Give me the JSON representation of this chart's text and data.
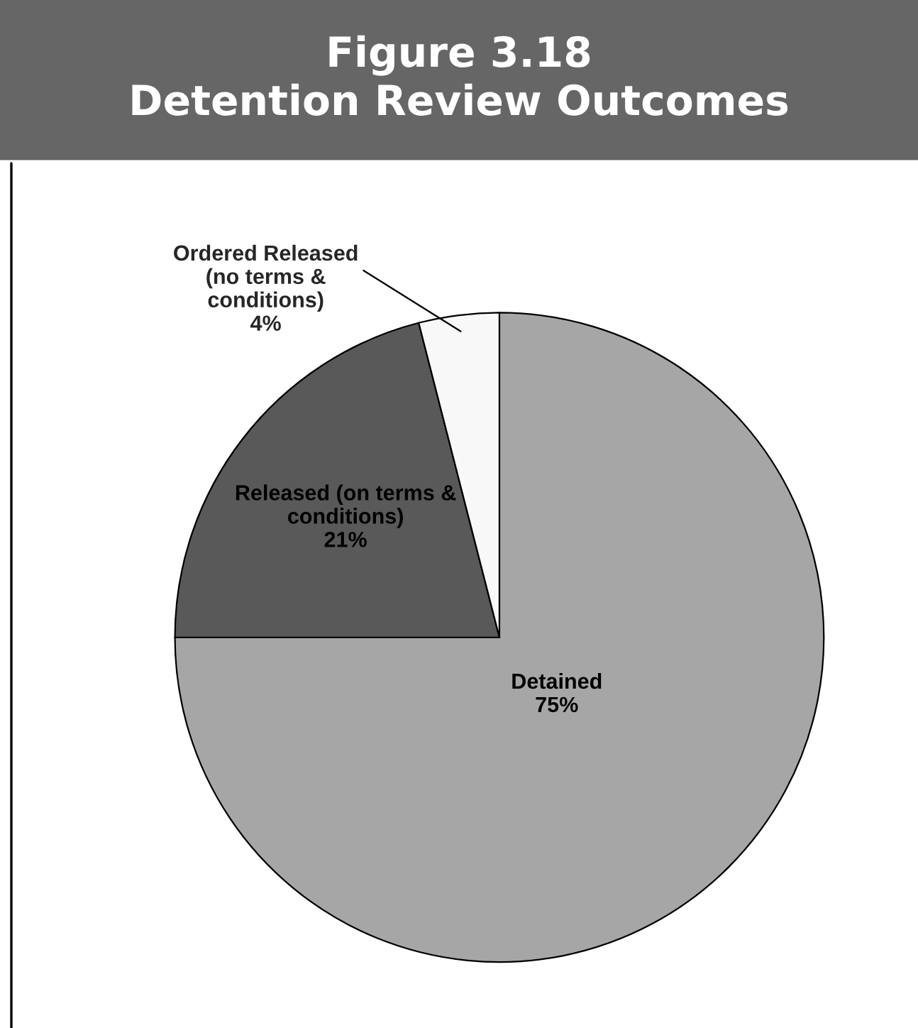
{
  "chart_data": {
    "type": "pie",
    "title": "Figure 3.18\nDetention Review Outcomes",
    "categories": [
      "Detained",
      "Released (on terms &\nconditions)",
      "Ordered Released\n(no terms &\nconditions)"
    ],
    "values": [
      75,
      21,
      4
    ],
    "colors": [
      "#a6a6a6",
      "#595959",
      "#f8f8f8"
    ],
    "value_labels": [
      "75%",
      "21%",
      "4%"
    ]
  }
}
